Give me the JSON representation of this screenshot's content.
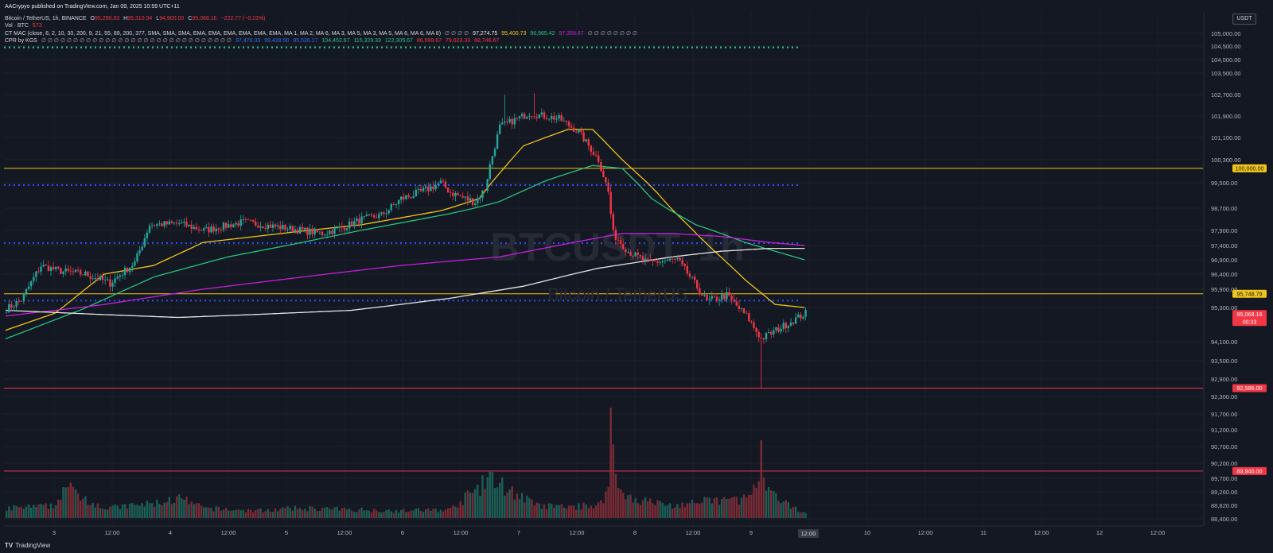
{
  "header": {
    "publisher": "AACrypyo published on TradingView.com, Jan 09, 2025 10:59 UTC+11",
    "symbol_line": "Bitcoin / TetherUS, 1h, BINANCE",
    "o_label": "O",
    "o_value": "95,290.93",
    "h_label": "H",
    "h_value": "95,310.94",
    "l_label": "L",
    "l_value": "94,900.00",
    "c_label": "C",
    "c_value": "95,068.16",
    "change": "−222.77 (−0.23%)",
    "vol_label": "Vol · BTC",
    "vol_value": "573",
    "mac_label": "CT MAC (close, 6, 2, 10, 30, 200, 9, 21, 55, 89, 200, 377, SMA, SMA, SMA, EMA, EMA, EMA, EMA, EMA, EMA, MA 1, MA 2, MA 6, MA 3, MA 5, MA 3, MA 5, MA 6, MA 6, MA 8)",
    "mac_placeholders": "∅ ∅ ∅ ∅",
    "mac_values": [
      "97,274.75",
      "95,400.73",
      "96,965.42",
      "97,359.67"
    ],
    "mac_tail": "∅ ∅ ∅ ∅ ∅ ∅ ∅ ∅",
    "cpr_label": "CPR by KGS",
    "cpr_placeholders": "∅ ∅ ∅ ∅ ∅ ∅ ∅ ∅ ∅ ∅ ∅ ∅ ∅ ∅ ∅ ∅ ∅ ∅ ∅ ∅ ∅ ∅ ∅ ∅ ∅ ∅ ∅ ∅ ∅ ∅",
    "cpr_values": [
      "97,478.33",
      "99,428.50",
      "95,526.17",
      "104,452.67",
      "115,329.33",
      "122,305.67",
      "86,599.67",
      "79,623.33",
      "68,746.67"
    ]
  },
  "currency_button": "USDT",
  "footer": {
    "logo": "TV",
    "brand": "TradingView"
  },
  "watermark": {
    "symbol": "BTCUSDT, 1h",
    "name": "Bitcoin / TetherUS"
  },
  "colors": {
    "background": "#141822",
    "up": "#26a69a",
    "down": "#f23645",
    "ema_yellow": "#f0c419",
    "ema_green": "#26c281",
    "ema_purple": "#c020d8",
    "ema_white": "#e6e6e6",
    "cpr_blue": "#2b4ff0",
    "level_yellow": "#f0c419",
    "level_red": "#f23645"
  },
  "chart_data": {
    "type": "candlestick",
    "timeframe": "1h",
    "x_ticks": [
      "3",
      "12:00",
      "4",
      "12:00",
      "5",
      "12:00",
      "6",
      "12:00",
      "7",
      "12:00",
      "8",
      "12:00",
      "9",
      "12:00",
      "10",
      "12:00",
      "11",
      "12:00",
      "12",
      "12:00"
    ],
    "y_ticks": [
      "105,000.00",
      "104,500.00",
      "104,000.00",
      "103,500.00",
      "102,700.00",
      "101,900.00",
      "101,100.00",
      "100,300.00",
      "99,500.00",
      "98,700.00",
      "97,900.00",
      "97,400.00",
      "96,900.00",
      "96,400.00",
      "95,900.00",
      "95,300.00",
      "94,100.00",
      "93,500.00",
      "92,900.00",
      "92,300.00",
      "91,700.00",
      "91,200.00",
      "90,700.00",
      "90,200.00",
      "89,700.00",
      "89,260.00",
      "88,820.00",
      "88,400.00"
    ],
    "y_axis_label_values": [
      105000,
      104500,
      104000,
      103500,
      102700,
      101900,
      101100,
      100300,
      99500,
      98700,
      97900,
      97400,
      96900,
      96400,
      95900,
      95300,
      94100,
      93500,
      92900,
      92300,
      91700,
      91200,
      90700,
      90200,
      89700,
      89260,
      88820,
      88400
    ],
    "price_tags": [
      {
        "label": "100,000.00",
        "value": 100000,
        "color": "#f0c419"
      },
      {
        "label": "95,748.79",
        "value": 95748.79,
        "color": "#f0c419"
      },
      {
        "label": "95,068.16",
        "value": 95068.16,
        "color": "#f23645"
      },
      {
        "label": "92,586.00",
        "value": 92586,
        "color": "#f23645"
      },
      {
        "label": "89,940.00",
        "value": 89940,
        "color": "#f23645"
      }
    ],
    "last_price_countdown": "00:33",
    "horizontal_levels": [
      {
        "value": 100000,
        "color": "#f0c419",
        "style": "solid"
      },
      {
        "value": 95748.79,
        "color": "#f0c419",
        "style": "solid"
      },
      {
        "value": 92586,
        "color": "#f23645",
        "style": "solid"
      },
      {
        "value": 89940,
        "color": "#f23645",
        "style": "solid"
      },
      {
        "value": 104452.67,
        "color": "#26c281",
        "style": "dotted",
        "partial": true
      },
      {
        "value": 99428.5,
        "color": "#2b4ff0",
        "style": "dotted",
        "partial": true
      },
      {
        "value": 97478.33,
        "color": "#2b4ff0",
        "style": "dotted",
        "partial": true
      },
      {
        "value": 95526.17,
        "color": "#2b4ff0",
        "style": "dotted",
        "partial": true
      }
    ],
    "price_keypoints": [
      [
        0,
        95250
      ],
      [
        6,
        95550
      ],
      [
        14,
        96700
      ],
      [
        22,
        96500
      ],
      [
        32,
        96400
      ],
      [
        42,
        96100
      ],
      [
        52,
        96800
      ],
      [
        58,
        98100
      ],
      [
        70,
        98150
      ],
      [
        80,
        97900
      ],
      [
        96,
        98200
      ],
      [
        112,
        98000
      ],
      [
        128,
        97800
      ],
      [
        136,
        98000
      ],
      [
        144,
        98300
      ],
      [
        152,
        98450
      ],
      [
        160,
        99000
      ],
      [
        168,
        99200
      ],
      [
        176,
        99500
      ],
      [
        180,
        99200
      ],
      [
        186,
        99000
      ],
      [
        190,
        98900
      ],
      [
        194,
        99300
      ],
      [
        196,
        100100
      ],
      [
        200,
        101500
      ],
      [
        212,
        102000
      ],
      [
        224,
        101800
      ],
      [
        232,
        101300
      ],
      [
        236,
        100800
      ],
      [
        240,
        100300
      ],
      [
        244,
        99200
      ],
      [
        246,
        97800
      ],
      [
        252,
        97200
      ],
      [
        260,
        96800
      ],
      [
        272,
        96900
      ],
      [
        284,
        95500
      ],
      [
        292,
        95700
      ],
      [
        300,
        95000
      ],
      [
        306,
        94200
      ],
      [
        316,
        94700
      ],
      [
        324,
        95100
      ]
    ],
    "volume_keypoints": [
      [
        0,
        0.08
      ],
      [
        20,
        0.1
      ],
      [
        23,
        0.26
      ],
      [
        40,
        0.08
      ],
      [
        60,
        0.12
      ],
      [
        70,
        0.16
      ],
      [
        80,
        0.08
      ],
      [
        100,
        0.06
      ],
      [
        120,
        0.08
      ],
      [
        140,
        0.07
      ],
      [
        160,
        0.06
      ],
      [
        180,
        0.07
      ],
      [
        196,
        0.32
      ],
      [
        200,
        0.28
      ],
      [
        215,
        0.1
      ],
      [
        230,
        0.09
      ],
      [
        242,
        0.12
      ],
      [
        244,
        0.36
      ],
      [
        245,
        0.78
      ],
      [
        248,
        0.22
      ],
      [
        256,
        0.15
      ],
      [
        270,
        0.1
      ],
      [
        285,
        0.14
      ],
      [
        300,
        0.16
      ],
      [
        305,
        0.28
      ],
      [
        306,
        0.5
      ],
      [
        308,
        0.22
      ],
      [
        318,
        0.09
      ],
      [
        324,
        0.05
      ]
    ],
    "volume_total_bars": 325,
    "volume_max_price_scale": 92300,
    "volume_min_price_scale": 88400,
    "ema_keypoints": {
      "yellow": [
        [
          0,
          94500
        ],
        [
          20,
          95100
        ],
        [
          40,
          96400
        ],
        [
          60,
          96700
        ],
        [
          80,
          97500
        ],
        [
          112,
          97800
        ],
        [
          144,
          98100
        ],
        [
          176,
          98600
        ],
        [
          192,
          99000
        ],
        [
          210,
          100800
        ],
        [
          228,
          101400
        ],
        [
          238,
          101400
        ],
        [
          250,
          100300
        ],
        [
          264,
          99200
        ],
        [
          280,
          97800
        ],
        [
          300,
          96200
        ],
        [
          312,
          95400
        ],
        [
          324,
          95300
        ]
      ],
      "green": [
        [
          0,
          94200
        ],
        [
          30,
          95200
        ],
        [
          60,
          96300
        ],
        [
          90,
          97000
        ],
        [
          120,
          97500
        ],
        [
          150,
          98000
        ],
        [
          180,
          98500
        ],
        [
          200,
          98900
        ],
        [
          220,
          99600
        ],
        [
          238,
          100100
        ],
        [
          250,
          100000
        ],
        [
          262,
          99000
        ],
        [
          280,
          98100
        ],
        [
          300,
          97500
        ],
        [
          312,
          97200
        ],
        [
          324,
          96900
        ]
      ],
      "purple": [
        [
          0,
          95000
        ],
        [
          40,
          95400
        ],
        [
          80,
          95900
        ],
        [
          120,
          96300
        ],
        [
          160,
          96700
        ],
        [
          200,
          97000
        ],
        [
          230,
          97500
        ],
        [
          250,
          97800
        ],
        [
          270,
          97800
        ],
        [
          290,
          97700
        ],
        [
          310,
          97500
        ],
        [
          324,
          97400
        ]
      ],
      "white": [
        [
          0,
          95200
        ],
        [
          40,
          95050
        ],
        [
          70,
          94950
        ],
        [
          100,
          95050
        ],
        [
          140,
          95200
        ],
        [
          180,
          95600
        ],
        [
          210,
          96000
        ],
        [
          240,
          96600
        ],
        [
          270,
          97000
        ],
        [
          290,
          97200
        ],
        [
          310,
          97300
        ],
        [
          324,
          97300
        ]
      ]
    },
    "wick_spikes": [
      {
        "bar": 306,
        "low": 92586
      },
      {
        "bar": 214,
        "high": 102750
      },
      {
        "bar": 202,
        "high": 102700
      }
    ]
  }
}
